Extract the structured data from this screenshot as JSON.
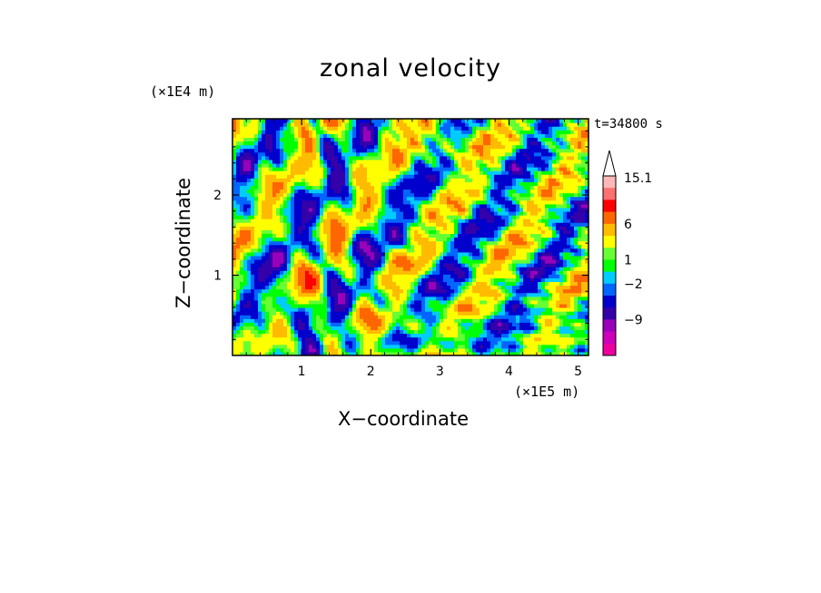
{
  "chart_data": {
    "type": "heatmap",
    "title": "zonal velocity",
    "xlabel": "X−coordinate",
    "ylabel": "Z−coordinate",
    "x_multiplier": "(×1E5 m)",
    "y_multiplier": "(×1E4 m)",
    "time_label": "t=34800 s",
    "xlim": [
      0,
      5.15
    ],
    "ylim": [
      0,
      2.95
    ],
    "x_ticks": [
      1,
      2,
      3,
      4,
      5
    ],
    "x_tick_labels": [
      "1",
      "2",
      "3",
      "4",
      "5"
    ],
    "y_ticks": [
      1,
      2
    ],
    "y_tick_labels": [
      "1",
      "2"
    ],
    "colorbar": {
      "levels": [
        -15.1,
        -12,
        -9,
        -6,
        -4,
        -2,
        -1,
        0,
        1,
        2,
        4,
        6,
        9,
        12,
        15.1
      ],
      "colors": [
        "#ee00a0",
        "#cc00bb",
        "#9900bb",
        "#3300aa",
        "#0000cc",
        "#0066ff",
        "#00ccff",
        "#00ff00",
        "#66ff33",
        "#ffff00",
        "#ffbb00",
        "#ff6600",
        "#ff0000",
        "#ff7070",
        "#ffb8b8"
      ],
      "labeled_levels": [
        "15.1",
        "6",
        "1",
        "−2",
        "−9"
      ],
      "extend": "max"
    }
  }
}
